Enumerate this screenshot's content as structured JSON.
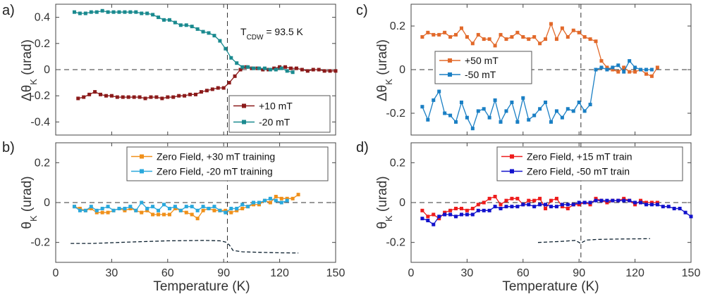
{
  "chart_data": [
    {
      "panel": "a)",
      "type": "line",
      "ylabel": "ΔθK (urad)",
      "xlim": [
        0,
        150
      ],
      "ylim": [
        -0.5,
        0.5
      ],
      "xticks": [],
      "yticks": [
        "0.4",
        "0.2",
        "0",
        "-0.2",
        "-0.4"
      ],
      "ytick_values": [
        0.4,
        0.2,
        0,
        -0.2,
        -0.4
      ],
      "annotation": {
        "main": "T",
        "sub": "CDW",
        "rest": " = 93.5 K"
      },
      "vline_x": 92,
      "legend_position": "lower-right",
      "series": [
        {
          "name": "+10 mT",
          "color": "#8b1a1a",
          "marker": "square",
          "x": [
            12,
            15,
            18,
            21,
            24,
            27,
            30,
            33,
            36,
            39,
            42,
            45,
            48,
            51,
            54,
            57,
            60,
            63,
            66,
            69,
            72,
            75,
            78,
            81,
            84,
            87,
            90,
            93,
            96,
            99,
            102,
            105,
            108,
            111,
            114,
            117,
            120,
            123,
            126,
            129,
            132,
            135,
            138,
            141,
            144,
            147,
            150
          ],
          "y": [
            -0.22,
            -0.21,
            -0.19,
            -0.17,
            -0.19,
            -0.2,
            -0.2,
            -0.21,
            -0.21,
            -0.21,
            -0.21,
            -0.21,
            -0.22,
            -0.21,
            -0.21,
            -0.22,
            -0.21,
            -0.21,
            -0.2,
            -0.2,
            -0.19,
            -0.19,
            -0.17,
            -0.16,
            -0.15,
            -0.14,
            -0.14,
            -0.1,
            -0.05,
            0.0,
            0.02,
            0.01,
            0.01,
            0.0,
            0.0,
            0.01,
            0.02,
            0.02,
            0.01,
            0.01,
            0.0,
            -0.01,
            0.0,
            0.0,
            -0.01,
            -0.01,
            -0.01
          ]
        },
        {
          "name": "-20 mT",
          "color": "#1a8a8f",
          "marker": "square",
          "x": [
            10,
            13,
            16,
            19,
            22,
            25,
            28,
            31,
            34,
            37,
            40,
            43,
            46,
            49,
            52,
            55,
            58,
            61,
            64,
            67,
            70,
            73,
            76,
            79,
            82,
            85,
            88,
            91,
            94,
            97,
            100,
            103,
            106,
            109,
            112,
            115,
            118,
            121,
            124,
            127
          ],
          "y": [
            0.44,
            0.43,
            0.43,
            0.44,
            0.44,
            0.45,
            0.44,
            0.44,
            0.44,
            0.44,
            0.44,
            0.44,
            0.43,
            0.43,
            0.42,
            0.4,
            0.38,
            0.38,
            0.36,
            0.34,
            0.34,
            0.33,
            0.31,
            0.29,
            0.28,
            0.26,
            0.22,
            0.16,
            0.09,
            0.05,
            0.02,
            0.02,
            0.01,
            0.01,
            0.01,
            0.0,
            0.0,
            0.01,
            -0.01,
            -0.02
          ]
        }
      ]
    },
    {
      "panel": "b)",
      "type": "line",
      "ylabel": "θK (urad)",
      "xlabel": "Temperature (K)",
      "xlim": [
        0,
        150
      ],
      "ylim": [
        -0.3,
        0.3
      ],
      "xticks": [
        "0",
        "30",
        "60",
        "90",
        "120",
        "150"
      ],
      "xtick_values": [
        0,
        30,
        60,
        90,
        120,
        150
      ],
      "yticks": [
        "0.2",
        "0",
        "-0.2"
      ],
      "ytick_values": [
        0.2,
        0,
        -0.2
      ],
      "vline_x": 92,
      "legend_position": "top-right",
      "series": [
        {
          "name": "Zero Field, +30 mT training",
          "color": "#f0901a",
          "marker": "square",
          "x": [
            10,
            13,
            16,
            19,
            22,
            25,
            28,
            31,
            34,
            37,
            40,
            43,
            46,
            49,
            52,
            55,
            58,
            61,
            64,
            67,
            70,
            73,
            76,
            79,
            82,
            85,
            88,
            91,
            94,
            97,
            100,
            103,
            106,
            109,
            112,
            115,
            118,
            121,
            124,
            127,
            130
          ],
          "y": [
            -0.02,
            -0.03,
            -0.04,
            -0.03,
            -0.05,
            -0.05,
            -0.05,
            -0.04,
            -0.03,
            -0.04,
            -0.03,
            -0.04,
            -0.05,
            -0.04,
            -0.06,
            -0.06,
            -0.06,
            -0.06,
            -0.03,
            -0.04,
            -0.05,
            -0.06,
            -0.08,
            -0.04,
            -0.03,
            -0.04,
            -0.04,
            -0.04,
            -0.05,
            -0.04,
            -0.03,
            -0.02,
            -0.01,
            -0.01,
            0.01,
            0.0,
            0.03,
            0.02,
            0.02,
            0.02,
            0.04
          ]
        },
        {
          "name": "Zero Field, -20 mT training",
          "color": "#2aa8dc",
          "marker": "square",
          "x": [
            10,
            13,
            16,
            19,
            22,
            25,
            28,
            31,
            34,
            37,
            40,
            43,
            46,
            49,
            52,
            55,
            58,
            61,
            64,
            67,
            70,
            73,
            76,
            79,
            82,
            85,
            88,
            91,
            94,
            97,
            100,
            103,
            106,
            109,
            112,
            115,
            118,
            121,
            124
          ],
          "y": [
            -0.02,
            -0.04,
            -0.04,
            -0.02,
            -0.04,
            -0.03,
            -0.02,
            -0.04,
            -0.03,
            -0.03,
            -0.02,
            -0.04,
            0.0,
            -0.03,
            -0.02,
            -0.04,
            -0.01,
            -0.03,
            -0.02,
            -0.04,
            -0.02,
            -0.02,
            -0.04,
            -0.02,
            -0.03,
            -0.02,
            -0.04,
            -0.05,
            -0.03,
            -0.03,
            -0.01,
            -0.02,
            0.0,
            0.0,
            0.01,
            0.02,
            0.01,
            0.0,
            0.01
          ]
        },
        {
          "name": "",
          "color": "#0b1f2e",
          "dashed": true,
          "marker": "none",
          "x": [
            8,
            20,
            40,
            60,
            80,
            88,
            91,
            93,
            95,
            100,
            110,
            120,
            130
          ],
          "y": [
            -0.205,
            -0.205,
            -0.198,
            -0.192,
            -0.19,
            -0.192,
            -0.198,
            -0.212,
            -0.24,
            -0.247,
            -0.25,
            -0.252,
            -0.253
          ]
        }
      ]
    },
    {
      "panel": "c)",
      "type": "line",
      "ylabel": "ΔθK (urad)",
      "xlim": [
        0,
        150
      ],
      "ylim": [
        -0.3,
        0.3
      ],
      "xticks": [],
      "yticks": [
        "0.2",
        "0",
        "-0.2"
      ],
      "ytick_values": [
        0.2,
        0,
        -0.2
      ],
      "vline_x": 91,
      "legend_position": "middle-left",
      "series": [
        {
          "name": "+50 mT",
          "color": "#e2692a",
          "marker": "square",
          "x": [
            6,
            9,
            12,
            15,
            18,
            21,
            24,
            27,
            30,
            33,
            36,
            39,
            42,
            45,
            48,
            51,
            54,
            57,
            60,
            63,
            66,
            69,
            72,
            75,
            78,
            81,
            84,
            87,
            90,
            93,
            96,
            99,
            102,
            105,
            108,
            111,
            114,
            117,
            120,
            123,
            126,
            129,
            132
          ],
          "y": [
            0.15,
            0.17,
            0.16,
            0.16,
            0.17,
            0.15,
            0.16,
            0.19,
            0.15,
            0.12,
            0.16,
            0.14,
            0.14,
            0.11,
            0.16,
            0.14,
            0.15,
            0.17,
            0.15,
            0.14,
            0.15,
            0.12,
            0.14,
            0.21,
            0.14,
            0.19,
            0.15,
            0.18,
            0.17,
            0.15,
            0.14,
            0.13,
            0.04,
            0.01,
            0.0,
            -0.01,
            0.01,
            -0.01,
            -0.01,
            0.0,
            -0.02,
            -0.03,
            0.01
          ]
        },
        {
          "name": "-50 mT",
          "color": "#1a7fc4",
          "marker": "square",
          "x": [
            6,
            9,
            12,
            15,
            18,
            21,
            24,
            27,
            30,
            33,
            36,
            39,
            42,
            45,
            48,
            51,
            54,
            57,
            60,
            63,
            66,
            69,
            72,
            75,
            78,
            81,
            84,
            87,
            90,
            93,
            96,
            99,
            102,
            105,
            108,
            111,
            114,
            117,
            120,
            123,
            126,
            129
          ],
          "y": [
            -0.17,
            -0.23,
            -0.14,
            -0.1,
            -0.2,
            -0.21,
            -0.24,
            -0.15,
            -0.22,
            -0.27,
            -0.19,
            -0.18,
            -0.22,
            -0.14,
            -0.24,
            -0.19,
            -0.15,
            -0.24,
            -0.13,
            -0.23,
            -0.21,
            -0.18,
            -0.15,
            -0.24,
            -0.19,
            -0.22,
            -0.18,
            -0.19,
            -0.15,
            -0.19,
            -0.16,
            0.0,
            0.01,
            0.0,
            0.01,
            0.02,
            -0.01,
            0.04,
            0.01,
            0.0,
            0.0,
            0.0
          ]
        }
      ]
    },
    {
      "panel": "d)",
      "type": "line",
      "ylabel": "θK (urad)",
      "xlabel": "Temperature (K)",
      "xlim": [
        0,
        150
      ],
      "ylim": [
        -0.3,
        0.3
      ],
      "xticks": [
        "0",
        "30",
        "60",
        "90",
        "120",
        "150"
      ],
      "xtick_values": [
        0,
        30,
        60,
        90,
        120,
        150
      ],
      "yticks": [
        "0.2",
        "0",
        "-0.2"
      ],
      "ytick_values": [
        0.2,
        0,
        -0.2
      ],
      "vline_x": 91,
      "legend_position": "top-right",
      "series": [
        {
          "name": "Zero Field, +15 mT train",
          "color": "#ee1c1c",
          "marker": "square",
          "x": [
            6,
            9,
            12,
            15,
            18,
            21,
            24,
            27,
            30,
            33,
            36,
            39,
            42,
            45,
            48,
            51,
            54,
            57,
            60,
            63,
            66,
            69,
            72,
            75,
            78,
            81,
            84,
            87,
            90,
            93,
            96,
            99,
            102,
            105,
            108,
            111,
            114,
            117,
            120,
            123,
            126,
            129,
            132
          ],
          "y": [
            -0.04,
            -0.07,
            -0.06,
            -0.08,
            -0.05,
            -0.04,
            -0.03,
            -0.03,
            -0.04,
            -0.03,
            -0.01,
            0.0,
            0.02,
            0.03,
            -0.01,
            0.01,
            0.02,
            0.02,
            -0.01,
            0.01,
            0.01,
            0.02,
            -0.03,
            0.01,
            0.02,
            -0.02,
            -0.03,
            -0.01,
            -0.01,
            0.0,
            -0.01,
            0.02,
            0.01,
            0.0,
            0.01,
            0.01,
            0.02,
            0.01,
            -0.01,
            0.01,
            0.0,
            0.0,
            0.0
          ]
        },
        {
          "name": "Zero Field, -50 mT train",
          "color": "#1212cc",
          "marker": "square",
          "x": [
            6,
            9,
            12,
            15,
            18,
            21,
            24,
            27,
            30,
            33,
            36,
            39,
            42,
            45,
            48,
            51,
            54,
            57,
            60,
            63,
            66,
            69,
            72,
            75,
            78,
            81,
            84,
            87,
            90,
            93,
            96,
            99,
            102,
            105,
            108,
            111,
            114,
            117,
            120,
            123,
            126,
            129,
            132,
            135,
            138,
            141,
            144,
            147,
            150
          ],
          "y": [
            -0.08,
            -0.09,
            -0.11,
            -0.07,
            -0.06,
            -0.06,
            -0.07,
            -0.06,
            -0.06,
            -0.06,
            -0.04,
            -0.04,
            -0.04,
            -0.02,
            -0.03,
            -0.02,
            -0.02,
            -0.02,
            -0.01,
            -0.01,
            -0.02,
            -0.01,
            -0.01,
            -0.02,
            -0.02,
            -0.01,
            -0.01,
            -0.01,
            0.0,
            0.0,
            0.0,
            0.01,
            0.01,
            0.01,
            0.01,
            0.01,
            0.01,
            0.01,
            0.0,
            0.0,
            -0.01,
            -0.01,
            -0.01,
            -0.02,
            -0.02,
            -0.03,
            -0.03,
            -0.05,
            -0.07
          ]
        },
        {
          "name": "",
          "color": "#0b1f2e",
          "dashed": true,
          "marker": "none",
          "x": [
            68,
            80,
            88,
            90,
            91,
            92,
            94,
            100,
            110,
            120,
            128
          ],
          "y": [
            -0.2,
            -0.195,
            -0.19,
            -0.2,
            -0.205,
            -0.198,
            -0.188,
            -0.185,
            -0.183,
            -0.182,
            -0.181
          ]
        }
      ]
    }
  ]
}
